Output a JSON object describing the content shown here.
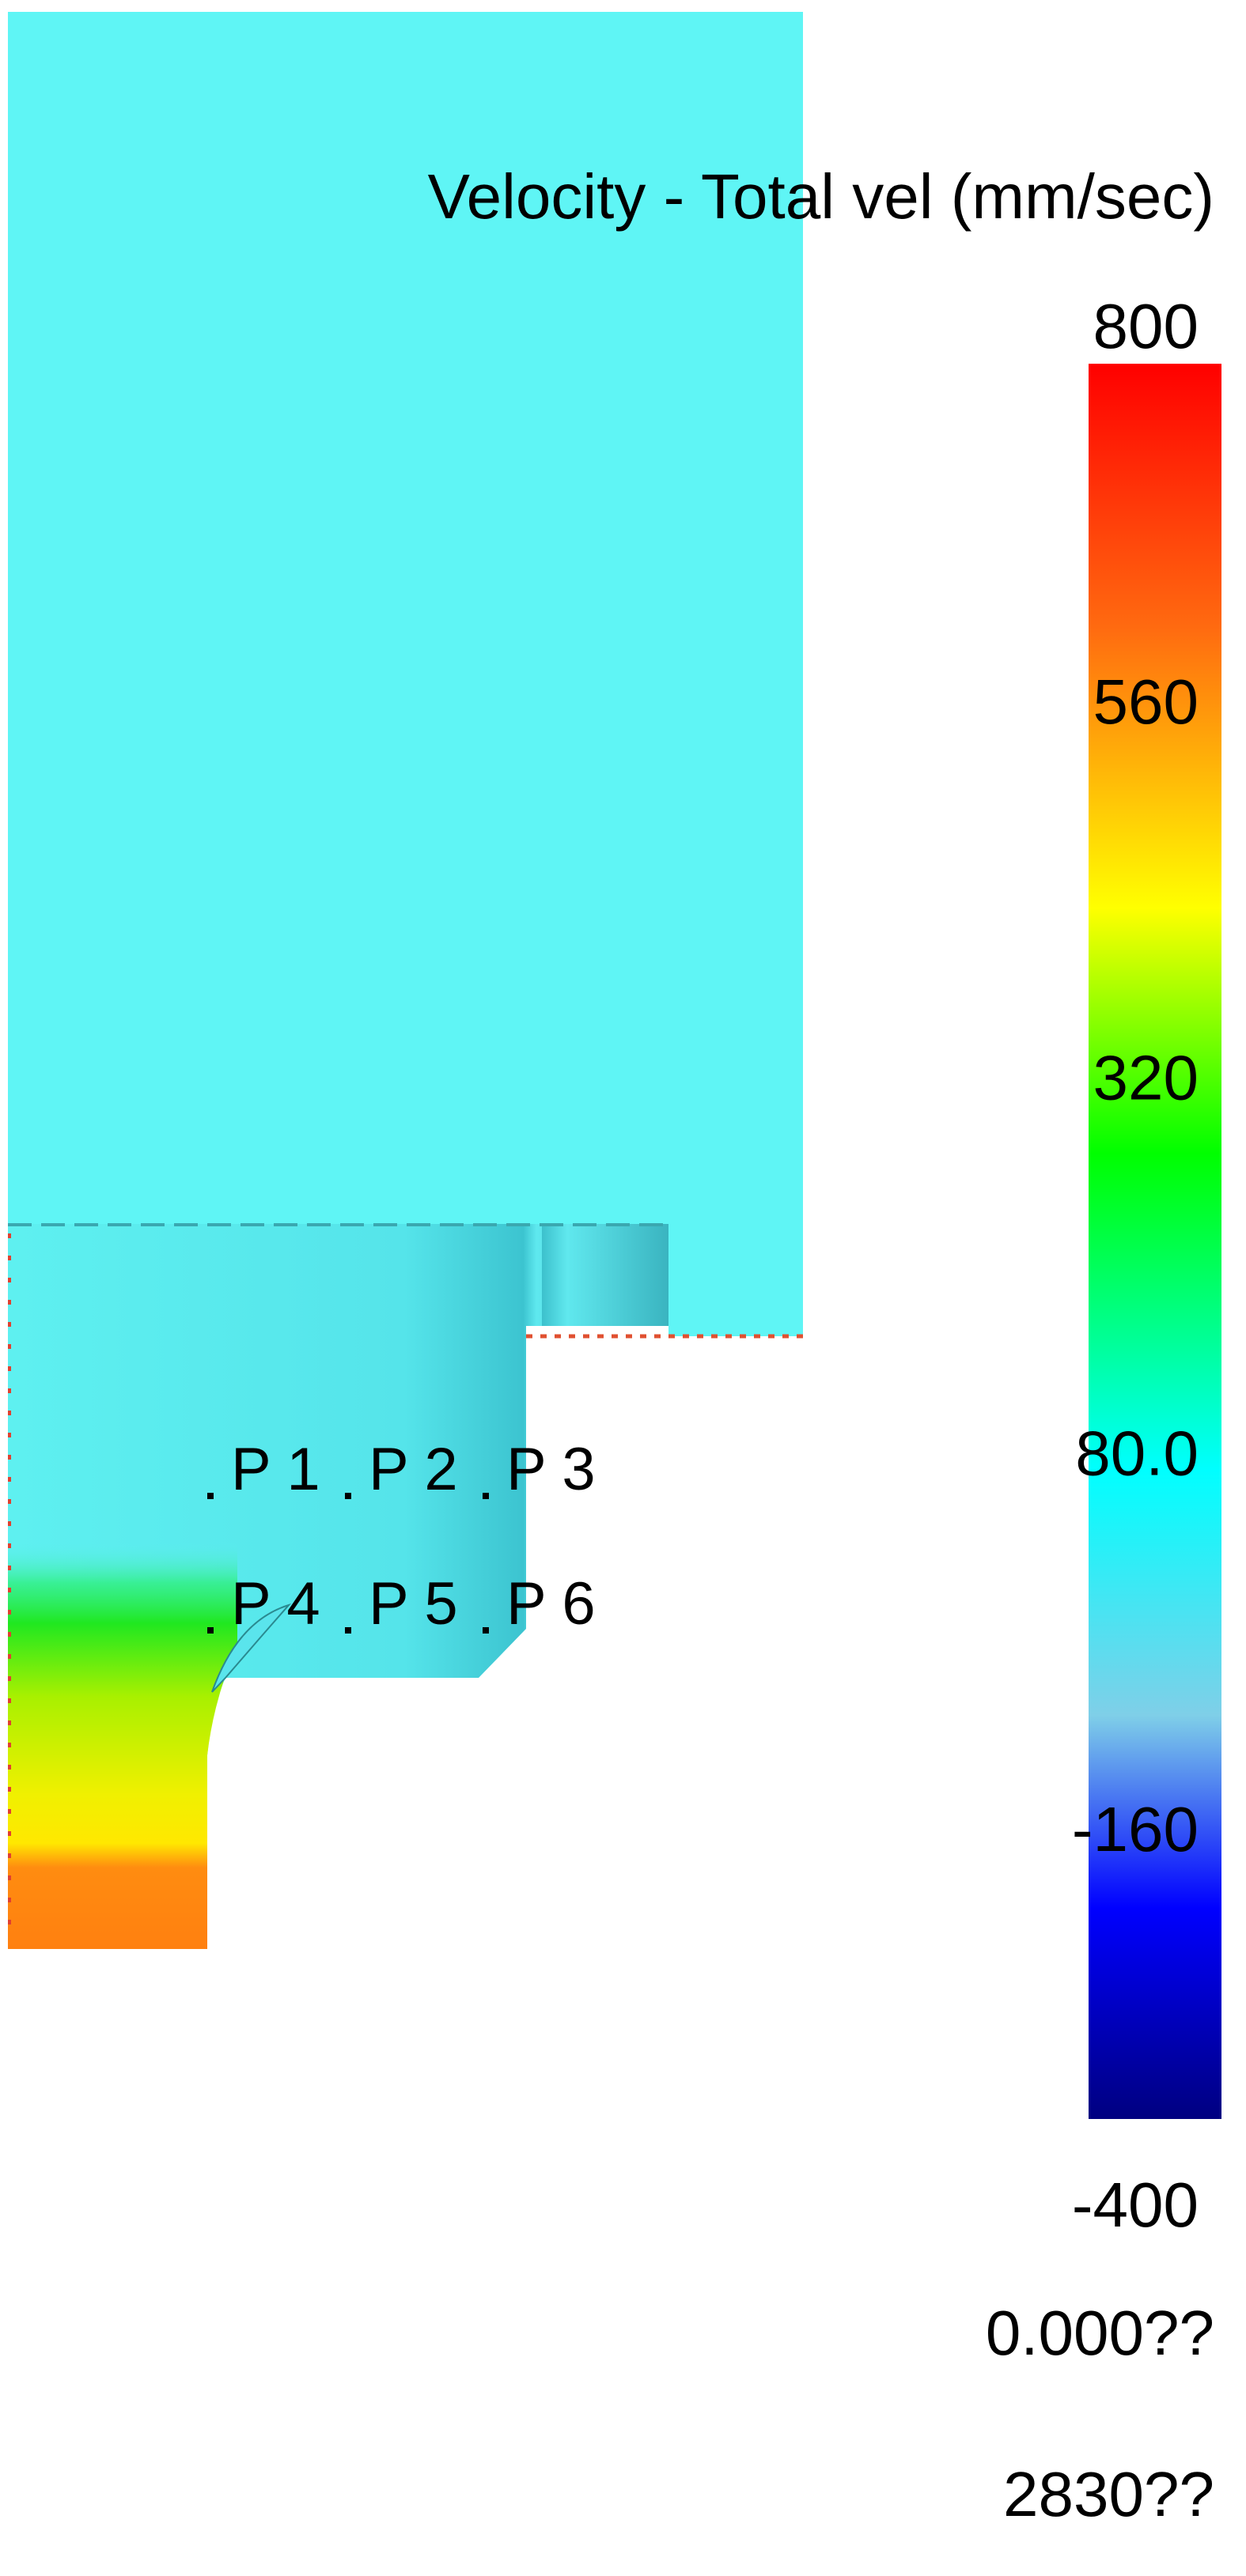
{
  "chart_data": {
    "type": "heatmap",
    "title": "Velocity - Total vel (mm/sec)",
    "colorbar": {
      "ticks": [
        "800",
        "560",
        "320",
        "80.0",
        "-160",
        "-400"
      ],
      "range": [
        -400,
        800
      ],
      "colors": [
        "#ff0000",
        "#ff6a10",
        "#ffff00",
        "#00ff00",
        "#00ffff",
        "#7fcfe8",
        "#0000ff",
        "#000080"
      ]
    },
    "footer": [
      "0.000??",
      "2830??"
    ],
    "probes": [
      "P 1",
      "P 2",
      "P 3",
      "P 4",
      "P 5",
      "P 6"
    ],
    "field_colors": {
      "fluid": "#5ff5f5",
      "gate_low": "#ffff00",
      "gate_bottom": "#ff8a10"
    }
  }
}
